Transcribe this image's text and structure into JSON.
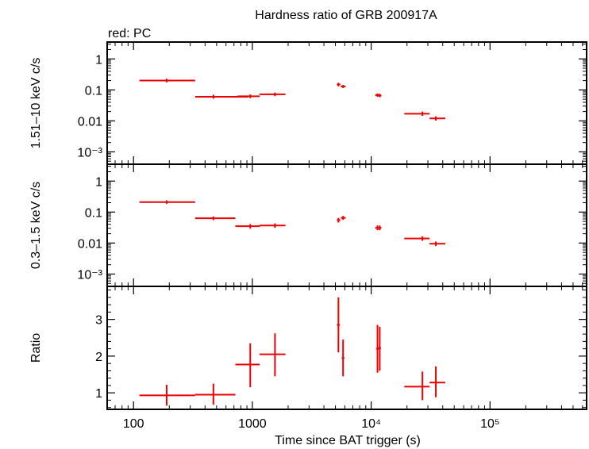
{
  "title": "Hardness ratio of GRB 200917A",
  "legend_note": "red: PC",
  "colors": {
    "data": "#ee0000",
    "axes": "#000000"
  },
  "chart_data": [
    {
      "type": "scatter",
      "panel": "hard",
      "ylabel": "1.51–10 keV c/s",
      "yscale": "log",
      "ylim": [
        0.0004,
        3.5
      ],
      "yticks": [
        {
          "v": 1,
          "t": "1"
        },
        {
          "v": 0.1,
          "t": "0.1"
        },
        {
          "v": 0.01,
          "t": "0.01"
        },
        {
          "v": 0.001,
          "t": "10⁻³"
        }
      ],
      "points": [
        {
          "x": 190,
          "xlo": 112,
          "xhi": 330,
          "y": 0.2,
          "ylo": 0.175,
          "yhi": 0.23
        },
        {
          "x": 470,
          "xlo": 330,
          "xhi": 920,
          "y": 0.06,
          "ylo": 0.052,
          "yhi": 0.07
        },
        {
          "x": 960,
          "xlo": 750,
          "xhi": 1150,
          "y": 0.062,
          "ylo": 0.054,
          "yhi": 0.071
        },
        {
          "x": 1550,
          "xlo": 1150,
          "xhi": 1900,
          "y": 0.072,
          "ylo": 0.063,
          "yhi": 0.082
        },
        {
          "x": 5300,
          "xlo": 5150,
          "xhi": 5500,
          "y": 0.15,
          "ylo": 0.13,
          "yhi": 0.17
        },
        {
          "x": 5800,
          "xlo": 5550,
          "xhi": 6100,
          "y": 0.13,
          "ylo": 0.115,
          "yhi": 0.145
        },
        {
          "x": 11300,
          "xlo": 10800,
          "xhi": 11700,
          "y": 0.068,
          "ylo": 0.06,
          "yhi": 0.077
        },
        {
          "x": 11800,
          "xlo": 11500,
          "xhi": 12200,
          "y": 0.066,
          "ylo": 0.058,
          "yhi": 0.075
        },
        {
          "x": 27000,
          "xlo": 19000,
          "xhi": 31000,
          "y": 0.017,
          "ylo": 0.0145,
          "yhi": 0.02
        },
        {
          "x": 35000,
          "xlo": 31000,
          "xhi": 42000,
          "y": 0.012,
          "ylo": 0.0102,
          "yhi": 0.014
        }
      ]
    },
    {
      "type": "scatter",
      "panel": "soft",
      "ylabel": "0.3–1.5 keV c/s",
      "yscale": "log",
      "ylim": [
        0.0004,
        3.5
      ],
      "yticks": [
        {
          "v": 1,
          "t": "1"
        },
        {
          "v": 0.1,
          "t": "0.1"
        },
        {
          "v": 0.01,
          "t": "0.01"
        },
        {
          "v": 0.001,
          "t": "10⁻³"
        }
      ],
      "points": [
        {
          "x": 190,
          "xlo": 112,
          "xhi": 330,
          "y": 0.21,
          "ylo": 0.185,
          "yhi": 0.24
        },
        {
          "x": 470,
          "xlo": 330,
          "xhi": 720,
          "y": 0.063,
          "ylo": 0.055,
          "yhi": 0.072
        },
        {
          "x": 960,
          "xlo": 720,
          "xhi": 1150,
          "y": 0.035,
          "ylo": 0.029,
          "yhi": 0.041
        },
        {
          "x": 1550,
          "xlo": 1150,
          "xhi": 1900,
          "y": 0.037,
          "ylo": 0.031,
          "yhi": 0.043
        },
        {
          "x": 5300,
          "xlo": 5150,
          "xhi": 5500,
          "y": 0.055,
          "ylo": 0.046,
          "yhi": 0.065
        },
        {
          "x": 5800,
          "xlo": 5550,
          "xhi": 6100,
          "y": 0.065,
          "ylo": 0.056,
          "yhi": 0.075
        },
        {
          "x": 11300,
          "xlo": 10800,
          "xhi": 11700,
          "y": 0.031,
          "ylo": 0.026,
          "yhi": 0.037
        },
        {
          "x": 11800,
          "xlo": 11500,
          "xhi": 12200,
          "y": 0.031,
          "ylo": 0.026,
          "yhi": 0.037
        },
        {
          "x": 27000,
          "xlo": 19000,
          "xhi": 31000,
          "y": 0.014,
          "ylo": 0.0118,
          "yhi": 0.0165
        },
        {
          "x": 35000,
          "xlo": 31000,
          "xhi": 42000,
          "y": 0.0095,
          "ylo": 0.008,
          "yhi": 0.0112
        }
      ]
    },
    {
      "type": "scatter",
      "panel": "ratio",
      "ylabel": "Ratio",
      "yscale": "linear",
      "ylim": [
        0.55,
        3.9
      ],
      "yticks": [
        {
          "v": 1,
          "t": "1"
        },
        {
          "v": 2,
          "t": "2"
        },
        {
          "v": 3,
          "t": "3"
        }
      ],
      "xlabel": "Time since BAT trigger (s)",
      "xscale": "log",
      "xlim": [
        60,
        650000
      ],
      "xticks": [
        {
          "v": 100,
          "t": "100"
        },
        {
          "v": 1000,
          "t": "1000"
        },
        {
          "v": 10000,
          "t": "10⁴"
        },
        {
          "v": 100000,
          "t": "10⁵"
        }
      ],
      "points": [
        {
          "x": 190,
          "xlo": 112,
          "xhi": 330,
          "y": 0.93,
          "ylo": 0.65,
          "yhi": 1.22
        },
        {
          "x": 470,
          "xlo": 330,
          "xhi": 720,
          "y": 0.95,
          "ylo": 0.68,
          "yhi": 1.25
        },
        {
          "x": 960,
          "xlo": 720,
          "xhi": 1150,
          "y": 1.77,
          "ylo": 1.15,
          "yhi": 2.35
        },
        {
          "x": 1550,
          "xlo": 1150,
          "xhi": 1900,
          "y": 2.05,
          "ylo": 1.45,
          "yhi": 2.62
        },
        {
          "x": 5300,
          "xlo": 5150,
          "xhi": 5450,
          "y": 2.85,
          "ylo": 2.1,
          "yhi": 3.6
        },
        {
          "x": 5800,
          "xlo": 5650,
          "xhi": 5950,
          "y": 1.95,
          "ylo": 1.45,
          "yhi": 2.45
        },
        {
          "x": 11300,
          "xlo": 11000,
          "xhi": 11600,
          "y": 2.2,
          "ylo": 1.55,
          "yhi": 2.85
        },
        {
          "x": 11800,
          "xlo": 11500,
          "xhi": 12100,
          "y": 2.22,
          "ylo": 1.6,
          "yhi": 2.8
        },
        {
          "x": 27000,
          "xlo": 19000,
          "xhi": 31000,
          "y": 1.17,
          "ylo": 0.8,
          "yhi": 1.58
        },
        {
          "x": 35000,
          "xlo": 31000,
          "xhi": 42000,
          "y": 1.28,
          "ylo": 0.88,
          "yhi": 1.72
        }
      ]
    }
  ]
}
